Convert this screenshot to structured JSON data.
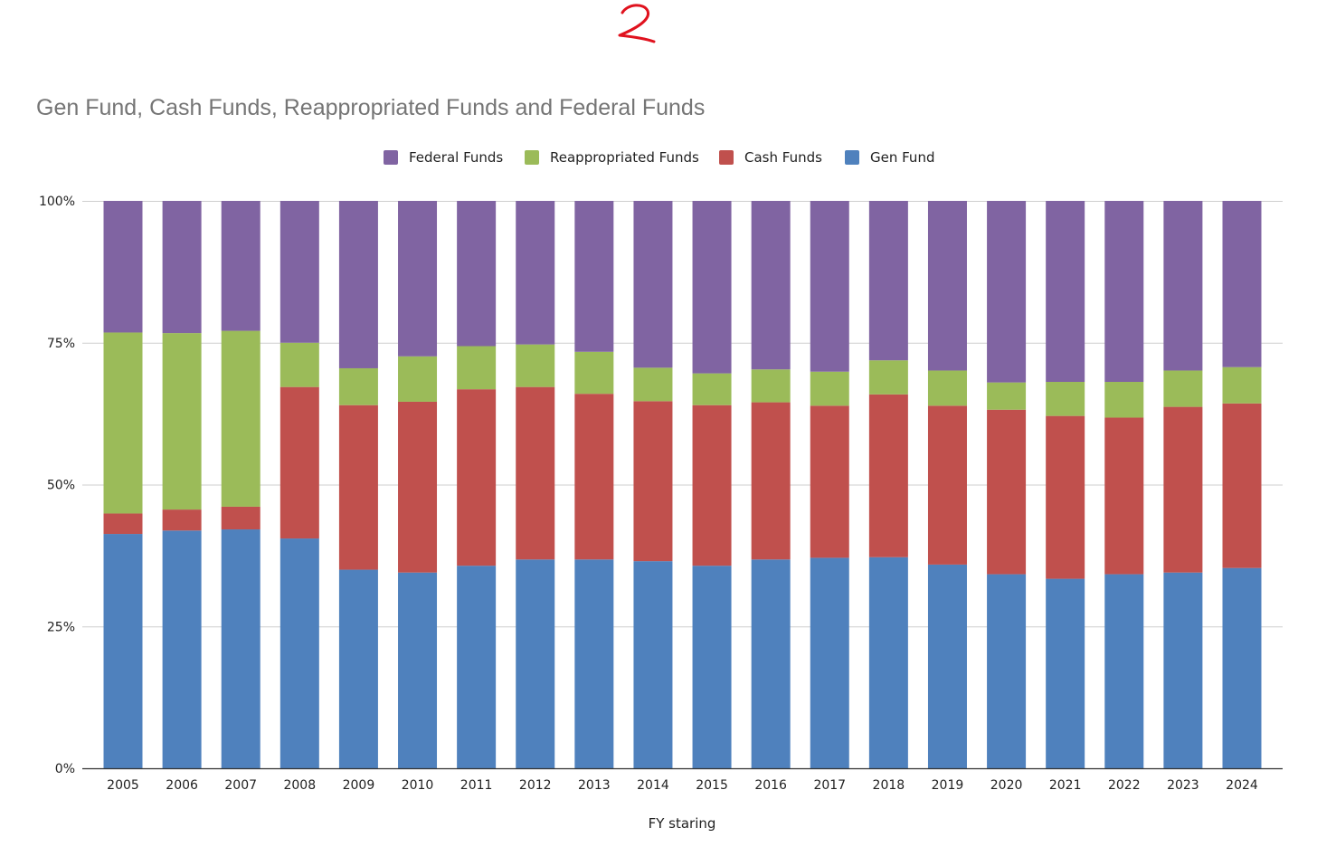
{
  "chart_data": {
    "type": "bar",
    "stacked": "percent",
    "title": "Gen Fund, Cash Funds, Reappropriated Funds and Federal Funds",
    "annotation": "2",
    "xlabel": "FY staring",
    "ylabel": "",
    "ylim": [
      0,
      100
    ],
    "yticks": [
      {
        "value": 0,
        "label": "0%"
      },
      {
        "value": 25,
        "label": "25%"
      },
      {
        "value": 50,
        "label": "50%"
      },
      {
        "value": 75,
        "label": "75%"
      },
      {
        "value": 100,
        "label": "100%"
      }
    ],
    "legend_position": "top-center",
    "categories": [
      "2005",
      "2006",
      "2007",
      "2008",
      "2009",
      "2010",
      "2011",
      "2012",
      "2013",
      "2014",
      "2015",
      "2016",
      "2017",
      "2018",
      "2019",
      "2020",
      "2021",
      "2022",
      "2023",
      "2024"
    ],
    "series": [
      {
        "name": "Gen Fund",
        "color": "#4f81bd",
        "values": [
          41.3,
          41.9,
          42.1,
          40.5,
          35.0,
          34.5,
          35.7,
          36.8,
          36.8,
          36.5,
          35.7,
          36.8,
          37.1,
          37.2,
          35.9,
          34.2,
          33.4,
          34.2,
          34.5,
          35.3
        ]
      },
      {
        "name": "Cash Funds",
        "color": "#c0504d",
        "values": [
          3.6,
          3.7,
          4.0,
          26.7,
          29.0,
          30.1,
          31.1,
          30.4,
          29.2,
          28.2,
          28.3,
          27.7,
          26.8,
          28.7,
          28.0,
          29.0,
          28.7,
          27.6,
          29.2,
          29.0
        ]
      },
      {
        "name": "Reappropriated Funds",
        "color": "#9bbb59",
        "values": [
          31.9,
          31.1,
          31.0,
          7.8,
          6.5,
          8.0,
          7.6,
          7.5,
          7.4,
          5.9,
          5.6,
          5.8,
          6.0,
          6.0,
          6.2,
          4.8,
          6.0,
          6.3,
          6.4,
          6.4
        ]
      },
      {
        "name": "Federal Funds",
        "color": "#8064a2",
        "values": [
          23.2,
          23.3,
          22.9,
          25.0,
          29.5,
          27.4,
          25.6,
          25.3,
          26.6,
          29.4,
          30.4,
          29.7,
          30.1,
          28.1,
          29.9,
          32.0,
          31.9,
          31.9,
          29.9,
          29.3
        ]
      }
    ],
    "legend_order": [
      "Federal Funds",
      "Reappropriated Funds",
      "Cash Funds",
      "Gen Fund"
    ]
  }
}
